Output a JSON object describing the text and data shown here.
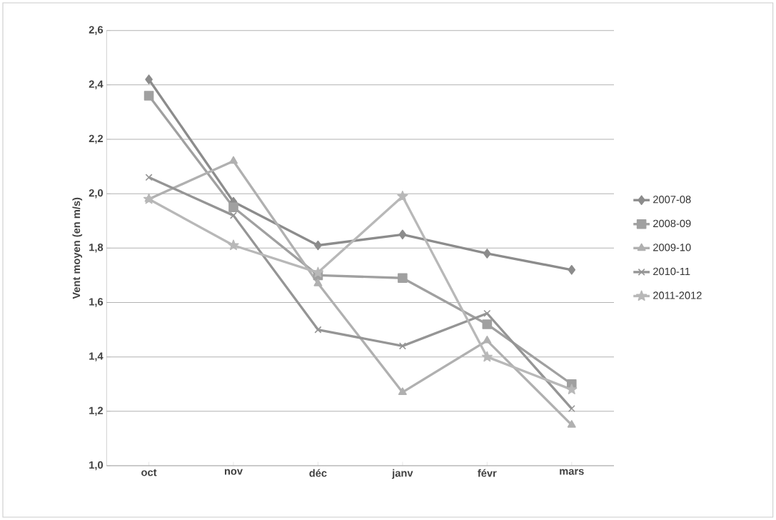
{
  "chart_data": {
    "type": "line",
    "ylabel": "Vent moyen (en m/s)",
    "categories": [
      "oct",
      "nov",
      "déc",
      "janv",
      "févr",
      "mars"
    ],
    "series": [
      {
        "name": "2007-08",
        "color": "#8c8c8c",
        "marker": "diamond",
        "values": [
          2.42,
          1.97,
          1.81,
          1.85,
          1.78,
          1.72
        ]
      },
      {
        "name": "2008-09",
        "color": "#a0a0a0",
        "marker": "square",
        "values": [
          2.36,
          1.95,
          1.7,
          1.69,
          1.52,
          1.3
        ]
      },
      {
        "name": "2009-10",
        "color": "#b0b0b0",
        "marker": "triangle",
        "values": [
          1.98,
          2.12,
          1.67,
          1.27,
          1.46,
          1.15
        ]
      },
      {
        "name": "2010-11",
        "color": "#959595",
        "marker": "cross",
        "values": [
          2.06,
          1.92,
          1.5,
          1.44,
          1.56,
          1.21
        ]
      },
      {
        "name": "2011-2012",
        "color": "#b8b8b8",
        "marker": "star",
        "values": [
          1.98,
          1.81,
          1.71,
          1.99,
          1.4,
          1.28
        ]
      }
    ],
    "ylim": [
      1.0,
      2.6
    ],
    "yticks": [
      {
        "value": 1.0,
        "label": "1,0"
      },
      {
        "value": 1.2,
        "label": "1,2"
      },
      {
        "value": 1.4,
        "label": "1,4"
      },
      {
        "value": 1.6,
        "label": "1,6"
      },
      {
        "value": 1.8,
        "label": "1,8"
      },
      {
        "value": 2.0,
        "label": "2,0"
      },
      {
        "value": 2.2,
        "label": "2,2"
      },
      {
        "value": 2.4,
        "label": "2,4"
      },
      {
        "value": 2.6,
        "label": "2,6"
      }
    ],
    "grid": "y",
    "legend": "right",
    "line_style": "solid"
  }
}
